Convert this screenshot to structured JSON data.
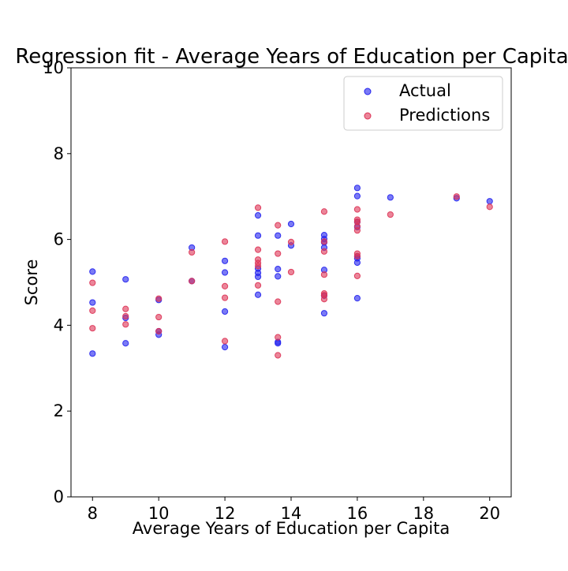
{
  "chart_data": {
    "type": "scatter",
    "title": "Regression fit - Average Years of Education per Capita",
    "xlabel": "Average Years of Education per Capita",
    "ylabel": "Score",
    "xlim": [
      7.35,
      20.65
    ],
    "ylim": [
      0,
      10
    ],
    "x_ticks": [
      8,
      10,
      12,
      14,
      16,
      18,
      20
    ],
    "y_ticks": [
      0,
      2,
      4,
      6,
      8,
      10
    ],
    "grid": false,
    "legend_position": "top-right",
    "series": [
      {
        "name": "Actual",
        "color": "#2222ee",
        "points": [
          [
            8,
            5.25
          ],
          [
            8,
            4.53
          ],
          [
            8,
            3.34
          ],
          [
            9,
            5.07
          ],
          [
            9,
            4.17
          ],
          [
            9,
            3.58
          ],
          [
            10,
            4.59
          ],
          [
            10,
            3.86
          ],
          [
            10,
            3.78
          ],
          [
            11,
            5.81
          ],
          [
            11,
            5.03
          ],
          [
            12,
            5.5
          ],
          [
            12,
            5.23
          ],
          [
            12,
            4.32
          ],
          [
            12,
            3.49
          ],
          [
            13,
            6.56
          ],
          [
            13,
            6.09
          ],
          [
            13,
            5.32
          ],
          [
            13,
            5.22
          ],
          [
            13,
            5.13
          ],
          [
            13,
            4.71
          ],
          [
            13.6,
            6.09
          ],
          [
            13.6,
            5.31
          ],
          [
            13.6,
            5.14
          ],
          [
            13.6,
            3.61
          ],
          [
            13.6,
            3.58
          ],
          [
            14,
            6.36
          ],
          [
            14,
            5.86
          ],
          [
            15,
            6.1
          ],
          [
            15,
            6.01
          ],
          [
            15,
            5.93
          ],
          [
            15,
            5.81
          ],
          [
            15,
            5.29
          ],
          [
            15,
            4.69
          ],
          [
            15,
            4.28
          ],
          [
            16,
            7.2
          ],
          [
            16,
            7.01
          ],
          [
            16,
            6.41
          ],
          [
            16,
            6.29
          ],
          [
            16,
            5.61
          ],
          [
            16,
            5.56
          ],
          [
            16,
            5.46
          ],
          [
            16,
            4.63
          ],
          [
            17,
            6.98
          ],
          [
            19,
            6.96
          ],
          [
            20,
            6.89
          ]
        ]
      },
      {
        "name": "Predictions",
        "color": "#dd3355",
        "points": [
          [
            8,
            4.99
          ],
          [
            8,
            4.34
          ],
          [
            8,
            3.93
          ],
          [
            9,
            4.38
          ],
          [
            9,
            4.21
          ],
          [
            9,
            4.02
          ],
          [
            10,
            4.62
          ],
          [
            10,
            4.19
          ],
          [
            10,
            3.86
          ],
          [
            11,
            5.7
          ],
          [
            11,
            5.03
          ],
          [
            12,
            5.95
          ],
          [
            12,
            4.91
          ],
          [
            12,
            4.64
          ],
          [
            12,
            3.63
          ],
          [
            13,
            6.74
          ],
          [
            13,
            5.76
          ],
          [
            13,
            5.53
          ],
          [
            13,
            5.45
          ],
          [
            13,
            5.38
          ],
          [
            13,
            4.93
          ],
          [
            13.6,
            6.33
          ],
          [
            13.6,
            5.67
          ],
          [
            13.6,
            4.55
          ],
          [
            13.6,
            3.72
          ],
          [
            13.6,
            3.3
          ],
          [
            14,
            5.94
          ],
          [
            14,
            5.24
          ],
          [
            15,
            6.65
          ],
          [
            15,
            5.95
          ],
          [
            15,
            5.72
          ],
          [
            15,
            5.18
          ],
          [
            15,
            4.74
          ],
          [
            15,
            4.7
          ],
          [
            15,
            4.61
          ],
          [
            16,
            6.7
          ],
          [
            16,
            6.46
          ],
          [
            16,
            6.41
          ],
          [
            16,
            6.31
          ],
          [
            16,
            6.21
          ],
          [
            16,
            5.67
          ],
          [
            16,
            5.61
          ],
          [
            16,
            5.15
          ],
          [
            17,
            6.58
          ],
          [
            19,
            7.0
          ],
          [
            20,
            6.76
          ]
        ]
      }
    ]
  }
}
